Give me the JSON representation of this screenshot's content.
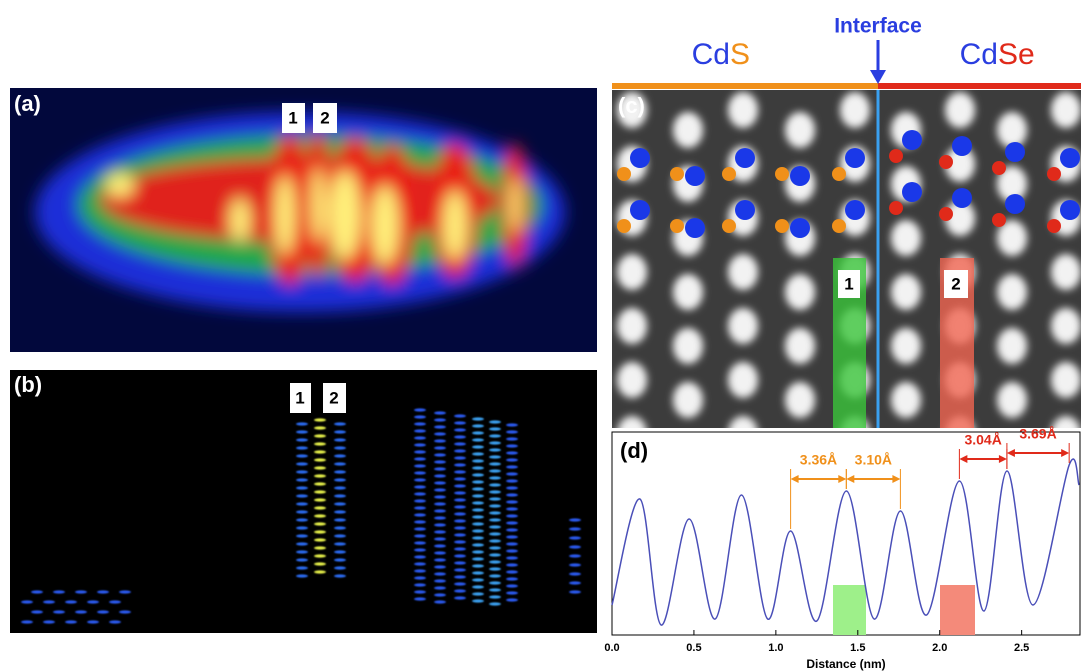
{
  "figure": {
    "panel_labels": {
      "a": "(a)",
      "b": "(b)",
      "c": "(c)",
      "d": "(d)"
    },
    "column_labels": {
      "a": [
        "1",
        "2"
      ],
      "b": [
        "1",
        "2"
      ],
      "c": [
        "1",
        "2"
      ]
    },
    "interface": "Interface",
    "cds": [
      "Cd",
      "S"
    ],
    "cdse": [
      "Cd",
      "Se"
    ]
  },
  "chart_data": {
    "type": "line",
    "x_label": "Distance (nm)",
    "xlim": [
      0,
      2.85
    ],
    "xticks": [
      {
        "value": 0,
        "label": "0.0"
      },
      0.5,
      {
        "value": 1,
        "label": "1.0"
      },
      1.5,
      {
        "value": 2,
        "label": "2.0"
      },
      2.5
    ],
    "ylim": [
      0,
      1
    ],
    "series": [
      {
        "color": "#4a4fb8",
        "x": [
          0,
          0.17,
          0.3,
          0.47,
          0.63,
          0.79,
          0.95,
          1.09,
          1.25,
          1.43,
          1.6,
          1.76,
          1.92,
          2.12,
          2.27,
          2.41,
          2.57,
          2.79,
          2.85
        ],
        "values": [
          0.15,
          0.68,
          0.05,
          0.58,
          0.08,
          0.7,
          0.08,
          0.52,
          0.07,
          0.72,
          0.08,
          0.62,
          0.1,
          0.77,
          0.12,
          0.82,
          0.15,
          0.85,
          0.75
        ]
      }
    ],
    "annotations": [
      {
        "label": "3.36Å",
        "from": 1.09,
        "to": 1.43,
        "color": "#f0901a"
      },
      {
        "label": "3.10Å",
        "from": 1.43,
        "to": 1.76,
        "color": "#f0901a"
      },
      {
        "label": "3.04Å",
        "from": 2.12,
        "to": 2.41,
        "color": "#e02a1a"
      },
      {
        "label": "3.69Å",
        "from": 2.41,
        "to": 2.79,
        "color": "#e02a1a"
      }
    ]
  }
}
